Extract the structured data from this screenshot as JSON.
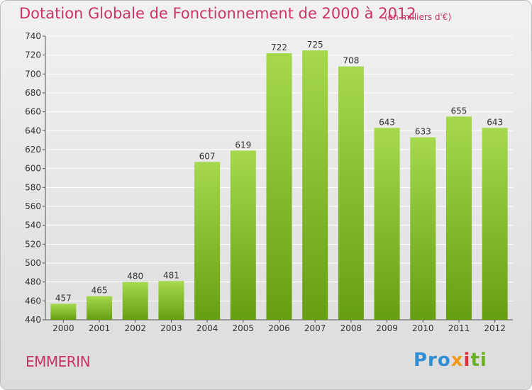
{
  "title": "Dotation Globale de Fonctionnement de 2000 à 2012",
  "units": "(en milliers d'€)",
  "commune": "EMMERIN",
  "logo": {
    "p1": "Pro",
    "p2": "x",
    "p3": "i",
    "p4": "ti"
  },
  "colors": {
    "title": "#cc3366",
    "bar_light": "#a6d94d",
    "bar_dark": "#669e13"
  },
  "chart_data": {
    "type": "bar",
    "title": "Dotation Globale de Fonctionnement de 2000 à 2012",
    "categories": [
      "2000",
      "2001",
      "2002",
      "2003",
      "2004",
      "2005",
      "2006",
      "2007",
      "2008",
      "2009",
      "2010",
      "2011",
      "2012"
    ],
    "values": [
      457,
      465,
      480,
      481,
      607,
      619,
      722,
      725,
      708,
      643,
      633,
      655,
      643
    ],
    "ylim": [
      440,
      740
    ],
    "yticks": [
      440,
      460,
      480,
      500,
      520,
      540,
      560,
      580,
      600,
      620,
      640,
      660,
      680,
      700,
      720,
      740
    ],
    "xlabel": "",
    "ylabel": "",
    "grid": true
  }
}
